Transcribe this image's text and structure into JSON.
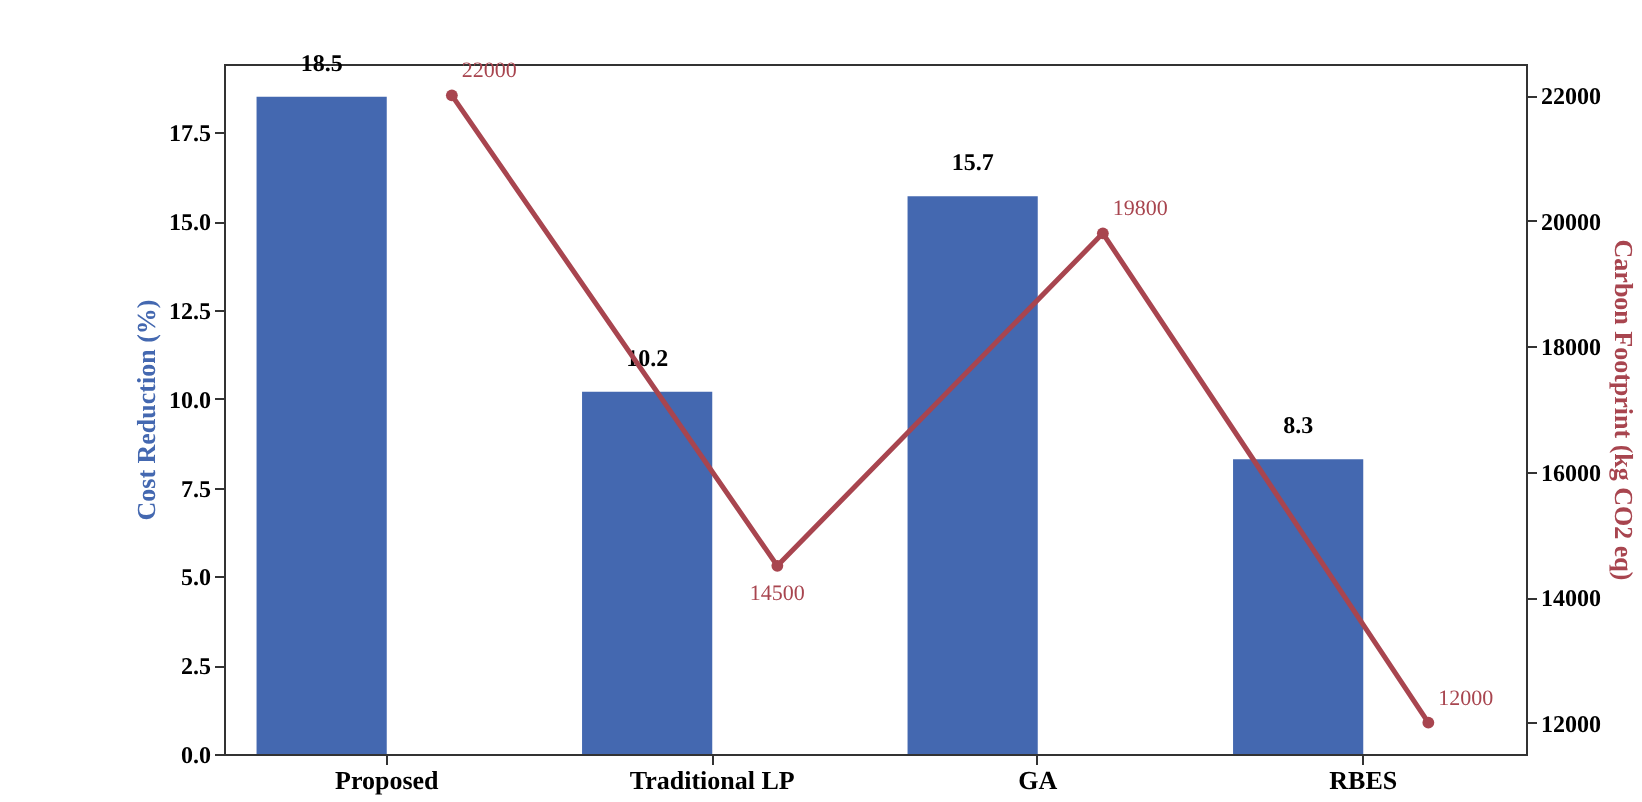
{
  "chart_data": {
    "type": "bar",
    "categories": [
      "Proposed",
      "Traditional LP",
      "GA",
      "RBES"
    ],
    "series": [
      {
        "color": "#4468b0",
        "values": [
          18.5,
          10.2,
          15.7,
          8.3
        ]
      },
      {
        "type": "line",
        "axis": "y2",
        "color": "#a8454f",
        "values": [
          22000,
          14500,
          19800,
          12000
        ]
      }
    ],
    "ylabel": "Cost Reduction (%)",
    "y2label": "Carbon Footprint (kg CO2 eq)",
    "ylim": [
      0,
      19.425
    ],
    "yticks": [
      {
        "value": 0,
        "label": "0.0"
      },
      2.5,
      {
        "value": 5,
        "label": "5.0"
      },
      7.5,
      {
        "value": 10,
        "label": "10.0"
      },
      12.5,
      {
        "value": 15,
        "label": "15.0"
      },
      17.5
    ],
    "y2lim": [
      11500,
      22500
    ],
    "y2ticks": [
      12000,
      14000,
      16000,
      18000,
      20000,
      22000
    ],
    "data_labels": true,
    "marker": "circle",
    "grid": false
  }
}
